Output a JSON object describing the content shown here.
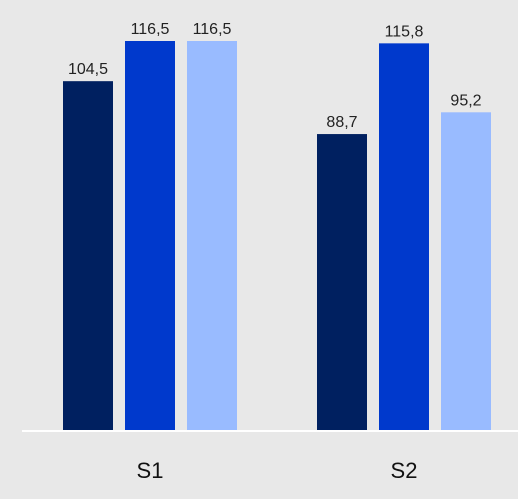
{
  "chart_data": {
    "type": "bar",
    "categories": [
      "S1",
      "S2"
    ],
    "series": [
      {
        "values": [
          104.5,
          88.7
        ],
        "labels": [
          "104,5",
          "88,7"
        ],
        "color": "#002060"
      },
      {
        "values": [
          116.5,
          115.8
        ],
        "labels": [
          "116,5",
          "115,8"
        ],
        "color": "#0039cc"
      },
      {
        "values": [
          116.5,
          95.2
        ],
        "labels": [
          "116,5",
          "95,2"
        ],
        "color": "#99bbff"
      }
    ],
    "ylim": [
      0,
      116.5
    ],
    "grid": false,
    "background": "#e8e8e8",
    "axis_color": "#ffffff"
  }
}
